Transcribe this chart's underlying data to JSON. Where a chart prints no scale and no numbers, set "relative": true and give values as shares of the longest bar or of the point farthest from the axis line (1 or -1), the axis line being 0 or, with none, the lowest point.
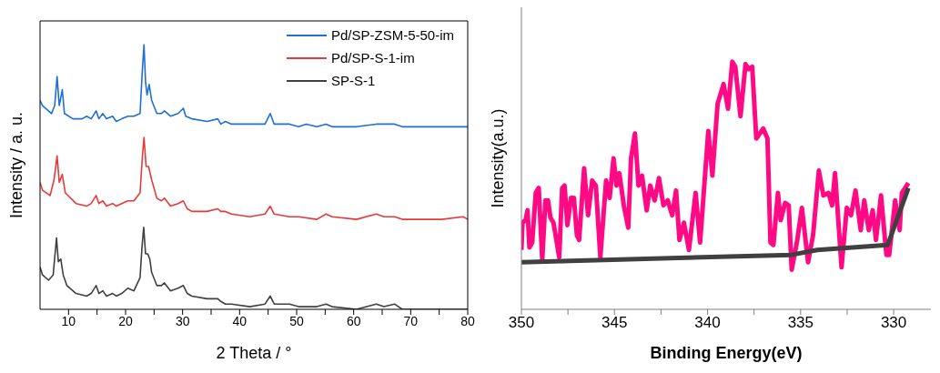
{
  "chart_data": [
    {
      "type": "line",
      "relative": true,
      "xlabel": "2 Theta / °",
      "ylabel": "Intensity / a. u.",
      "xlim": [
        5,
        80
      ],
      "xticks": [
        10,
        {
          "value": 15,
          "label": null
        },
        20,
        {
          "value": 25,
          "label": null
        },
        30,
        {
          "value": 35,
          "label": null
        },
        40,
        {
          "value": 45,
          "label": null
        },
        50,
        {
          "value": 55,
          "label": null
        },
        60,
        {
          "value": 65,
          "label": null
        },
        70,
        {
          "value": 75,
          "label": null
        },
        80
      ],
      "tick_labels": "x",
      "legend": "top right",
      "grid": false,
      "marker": "none",
      "line_style": "solid",
      "series": [
        {
          "name": "Pd/SP-ZSM-5-50-im",
          "color": "#1f6fd6",
          "x": [
            5.0,
            5.43,
            7.03,
            7.57,
            7.99,
            8.37,
            8.9,
            9.28,
            10.77,
            12.38,
            13.18,
            13.98,
            14.84,
            15.32,
            16.01,
            16.65,
            17.72,
            18.37,
            19.33,
            20.4,
            21.47,
            22.54,
            22.96,
            23.23,
            23.5,
            23.76,
            24.14,
            24.57,
            25.48,
            26.28,
            26.81,
            27.88,
            29.22,
            30.13,
            30.55,
            31.62,
            34.3,
            36.17,
            36.7,
            37.5,
            38.57,
            41.78,
            44.45,
            45.36,
            46.06,
            47.13,
            48.73,
            50.33,
            51.67,
            53.54,
            55.15,
            56.21,
            60.49,
            63.97,
            65.3,
            67.17,
            68.51,
            71.72,
            75.46,
            79.2,
            80.0
          ],
          "values": [
            0.79,
            0.77,
            0.74,
            0.77,
            0.88,
            0.77,
            0.83,
            0.74,
            0.72,
            0.72,
            0.73,
            0.72,
            0.75,
            0.72,
            0.74,
            0.72,
            0.73,
            0.71,
            0.72,
            0.73,
            0.73,
            0.74,
            0.91,
            1.0,
            0.86,
            0.81,
            0.85,
            0.79,
            0.74,
            0.74,
            0.75,
            0.73,
            0.74,
            0.76,
            0.73,
            0.72,
            0.71,
            0.72,
            0.7,
            0.71,
            0.7,
            0.7,
            0.7,
            0.74,
            0.7,
            0.7,
            0.7,
            0.69,
            0.7,
            0.69,
            0.7,
            0.69,
            0.69,
            0.7,
            0.7,
            0.7,
            0.69,
            0.69,
            0.69,
            0.69,
            0.69
          ]
        },
        {
          "name": "Pd/SP-S-1-im",
          "color": "#e8393a",
          "x": [
            5.0,
            5.43,
            6.76,
            7.46,
            7.99,
            8.37,
            8.9,
            9.44,
            11.31,
            13.18,
            13.98,
            14.84,
            15.32,
            16.01,
            16.65,
            17.72,
            18.37,
            19.33,
            20.4,
            21.47,
            22.54,
            22.96,
            23.23,
            23.6,
            24.03,
            24.57,
            25.48,
            26.28,
            26.81,
            27.88,
            29.22,
            30.13,
            30.82,
            31.62,
            34.3,
            36.17,
            36.7,
            37.5,
            38.57,
            41.78,
            44.45,
            45.36,
            46.06,
            48.73,
            50.33,
            53.54,
            55.15,
            56.21,
            60.49,
            63.97,
            65.3,
            67.17,
            68.51,
            71.72,
            75.46,
            79.2,
            80.0
          ],
          "values": [
            0.48,
            0.45,
            0.43,
            0.49,
            0.58,
            0.48,
            0.51,
            0.44,
            0.4,
            0.39,
            0.4,
            0.43,
            0.4,
            0.41,
            0.39,
            0.4,
            0.39,
            0.4,
            0.41,
            0.41,
            0.44,
            0.58,
            0.65,
            0.54,
            0.54,
            0.49,
            0.42,
            0.41,
            0.42,
            0.39,
            0.4,
            0.41,
            0.38,
            0.37,
            0.37,
            0.38,
            0.37,
            0.37,
            0.36,
            0.35,
            0.36,
            0.39,
            0.36,
            0.35,
            0.35,
            0.34,
            0.36,
            0.35,
            0.34,
            0.36,
            0.35,
            0.35,
            0.34,
            0.34,
            0.34,
            0.35,
            0.34
          ]
        },
        {
          "name": "SP-S-1",
          "color": "#404040",
          "x": [
            5.0,
            5.43,
            6.5,
            7.3,
            7.89,
            8.21,
            8.64,
            9.06,
            9.7,
            11.31,
            13.18,
            13.98,
            14.84,
            15.32,
            16.01,
            16.65,
            17.72,
            18.37,
            19.33,
            20.4,
            21.47,
            22.54,
            22.86,
            23.18,
            23.5,
            23.87,
            24.25,
            24.57,
            25.48,
            26.28,
            26.81,
            27.88,
            29.22,
            30.13,
            30.82,
            31.62,
            34.3,
            36.17,
            36.7,
            37.5,
            38.57,
            41.78,
            44.45,
            45.36,
            46.06,
            48.73,
            50.33,
            53.54,
            55.15,
            56.21,
            60.49,
            63.97,
            65.3,
            67.17,
            68.51,
            71.72,
            75.46,
            79.2,
            80.0
          ],
          "values": [
            0.16,
            0.13,
            0.11,
            0.13,
            0.27,
            0.18,
            0.19,
            0.13,
            0.09,
            0.06,
            0.05,
            0.06,
            0.09,
            0.06,
            0.07,
            0.05,
            0.06,
            0.05,
            0.06,
            0.08,
            0.07,
            0.12,
            0.23,
            0.31,
            0.21,
            0.21,
            0.19,
            0.14,
            0.09,
            0.09,
            0.1,
            0.07,
            0.08,
            0.09,
            0.06,
            0.05,
            0.04,
            0.04,
            0.03,
            0.02,
            0.02,
            0.01,
            0.02,
            0.05,
            0.02,
            0.02,
            0.01,
            0.01,
            0.02,
            0.01,
            0.0,
            0.02,
            0.01,
            0.02,
            0.0,
            0.0,
            0.0,
            0.0,
            0.0
          ]
        }
      ]
    },
    {
      "type": "line",
      "relative": true,
      "xlabel": "Binding Energy(eV)",
      "ylabel": "Intensity(a.u.)",
      "xlim": [
        350,
        328
      ],
      "xticks": [
        350,
        {
          "value": 347.5,
          "label": null
        },
        345,
        {
          "value": 342.5,
          "label": null
        },
        340,
        {
          "value": 337.5,
          "label": null
        },
        335,
        {
          "value": 332.5,
          "label": null
        },
        330
      ],
      "tick_labels": "x",
      "legend": false,
      "grid": false,
      "marker": "none",
      "line_style": "solid",
      "series": [
        {
          "color": "#ff0a84",
          "x": [
            350.0,
            349.94,
            349.78,
            349.67,
            349.57,
            349.42,
            349.23,
            349.07,
            348.88,
            348.71,
            348.57,
            348.44,
            348.28,
            348.12,
            347.97,
            347.81,
            347.68,
            347.53,
            347.34,
            347.18,
            347.02,
            346.9,
            346.63,
            346.42,
            346.2,
            346.0,
            345.76,
            345.45,
            345.26,
            345.05,
            344.89,
            344.74,
            344.5,
            344.26,
            344.11,
            343.9,
            343.71,
            343.52,
            343.27,
            343.08,
            342.84,
            342.61,
            342.37,
            342.14,
            341.9,
            341.69,
            341.51,
            341.27,
            341.0,
            340.64,
            340.4,
            339.96,
            339.74,
            339.46,
            339.14,
            338.9,
            338.67,
            338.51,
            338.23,
            337.96,
            337.8,
            337.6,
            337.38,
            337.01,
            336.78,
            336.62,
            336.46,
            336.22,
            336.07,
            335.83,
            335.64,
            335.48,
            335.2,
            334.93,
            334.6,
            334.33,
            334.02,
            333.78,
            333.5,
            333.31,
            333.15,
            332.8,
            332.52,
            332.29,
            332.05,
            331.77,
            331.58,
            331.34,
            331.13,
            330.95,
            330.68,
            330.39,
            330.24,
            329.92,
            329.68,
            329.56,
            329.21
          ],
          "values": [
            0.24,
            0.35,
            0.36,
            0.4,
            0.25,
            0.27,
            0.47,
            0.49,
            0.2,
            0.44,
            0.44,
            0.37,
            0.35,
            0.28,
            0.21,
            0.49,
            0.5,
            0.34,
            0.45,
            0.45,
            0.3,
            0.28,
            0.57,
            0.38,
            0.52,
            0.5,
            0.21,
            0.52,
            0.45,
            0.61,
            0.5,
            0.55,
            0.42,
            0.33,
            0.61,
            0.71,
            0.5,
            0.54,
            0.4,
            0.5,
            0.44,
            0.53,
            0.42,
            0.44,
            0.38,
            0.48,
            0.28,
            0.35,
            0.24,
            0.47,
            0.27,
            0.72,
            0.54,
            0.83,
            0.91,
            0.81,
            1.0,
            0.98,
            0.78,
            0.99,
            0.97,
            0.98,
            0.69,
            0.73,
            0.69,
            0.27,
            0.26,
            0.47,
            0.36,
            0.43,
            0.42,
            0.16,
            0.27,
            0.41,
            0.19,
            0.3,
            0.56,
            0.46,
            0.47,
            0.42,
            0.55,
            0.17,
            0.41,
            0.38,
            0.48,
            0.32,
            0.44,
            0.32,
            0.4,
            0.28,
            0.46,
            0.22,
            0.22,
            0.44,
            0.32,
            0.47,
            0.51
          ]
        },
        {
          "color": "#404040",
          "x": [
            350.0,
            335.5,
            334.1,
            330.32,
            329.21
          ],
          "values": [
            0.19,
            0.22,
            0.24,
            0.26,
            0.49
          ]
        }
      ]
    }
  ]
}
